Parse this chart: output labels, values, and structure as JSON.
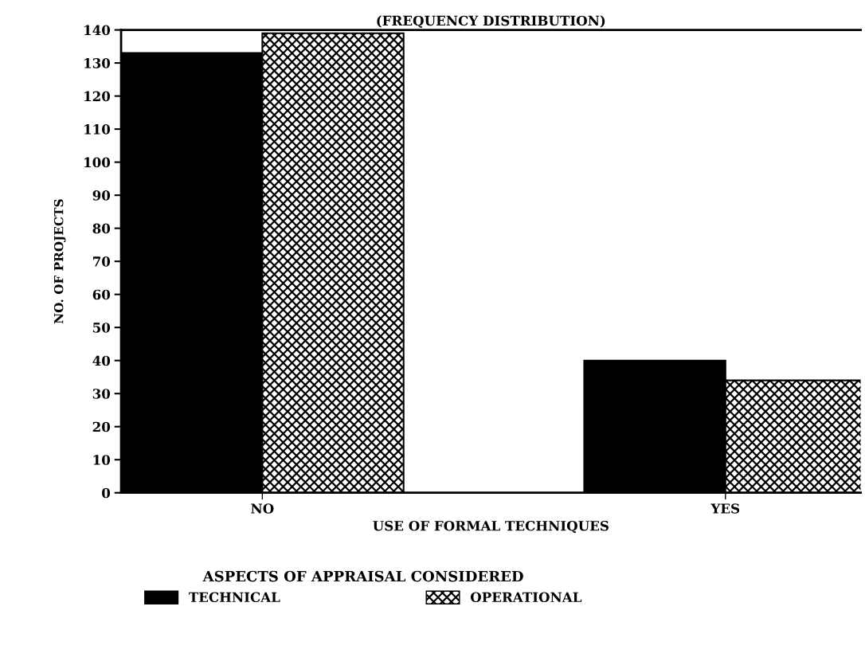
{
  "chart_data": {
    "type": "bar",
    "title": "(FREQUENCY DISTRIBUTION)",
    "xlabel": "USE OF FORMAL TECHNIQUES",
    "ylabel": "NO. OF PROJECTS",
    "legend_title": "ASPECTS OF APPRAISAL CONSIDERED",
    "categories": [
      "NO",
      "YES"
    ],
    "series": [
      {
        "name": "TECHNICAL",
        "color": "#000000",
        "values": [
          133,
          40
        ]
      },
      {
        "name": "OPERATIONAL",
        "color": "#000000",
        "values": [
          139,
          34
        ]
      }
    ],
    "ylim": [
      0,
      140
    ],
    "yticks": [
      0,
      10,
      20,
      30,
      40,
      50,
      60,
      70,
      80,
      90,
      100,
      110,
      120,
      130,
      140
    ],
    "grid": false,
    "legend": "bottom"
  }
}
